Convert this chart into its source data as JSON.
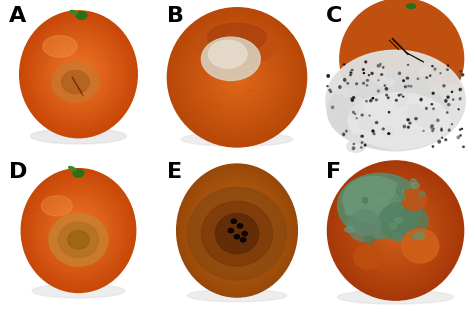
{
  "figsize": [
    4.74,
    3.11
  ],
  "dpi": 100,
  "labels": [
    "A",
    "B",
    "C",
    "D",
    "E",
    "F"
  ],
  "label_fontsize": 16,
  "label_color": "black",
  "label_fontweight": "bold",
  "nrows": 2,
  "ncols": 3,
  "background_color": "#ffffff",
  "panel_backgrounds": [
    "#ffffff",
    "#ffffff",
    "#ffffff",
    "#ffffff",
    "#ffffff",
    "#ffffff"
  ],
  "divider_color": "#cccccc",
  "divider_lw": 0.8
}
